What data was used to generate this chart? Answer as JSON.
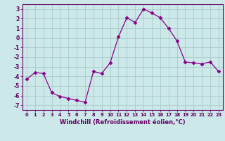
{
  "x": [
    0,
    1,
    2,
    3,
    4,
    5,
    6,
    7,
    8,
    9,
    10,
    11,
    12,
    13,
    14,
    15,
    16,
    17,
    18,
    19,
    20,
    21,
    22,
    23
  ],
  "y": [
    -4.3,
    -3.6,
    -3.7,
    -5.7,
    -6.1,
    -6.3,
    -6.5,
    -6.7,
    -3.5,
    -3.7,
    -2.6,
    0.1,
    2.1,
    1.6,
    3.0,
    2.6,
    2.1,
    1.0,
    -0.3,
    -2.5,
    -2.6,
    -2.7,
    -2.5,
    -3.5
  ],
  "line_color": "#880088",
  "marker": "D",
  "marker_size": 2.5,
  "bg_color": "#cce8e8",
  "grid_color": "#aacccc",
  "xlabel": "Windchill (Refroidissement éolien,°C)",
  "ylim": [
    -7.5,
    3.5
  ],
  "xlim": [
    -0.5,
    23.5
  ],
  "yticks": [
    -7,
    -6,
    -5,
    -4,
    -3,
    -2,
    -1,
    0,
    1,
    2,
    3
  ],
  "xticks": [
    0,
    1,
    2,
    3,
    4,
    5,
    6,
    7,
    8,
    9,
    10,
    11,
    12,
    13,
    14,
    15,
    16,
    17,
    18,
    19,
    20,
    21,
    22,
    23
  ],
  "tick_color": "#660066",
  "label_color": "#660066",
  "xtick_fontsize": 4.8,
  "ytick_fontsize": 5.5,
  "xlabel_fontsize": 6.0
}
